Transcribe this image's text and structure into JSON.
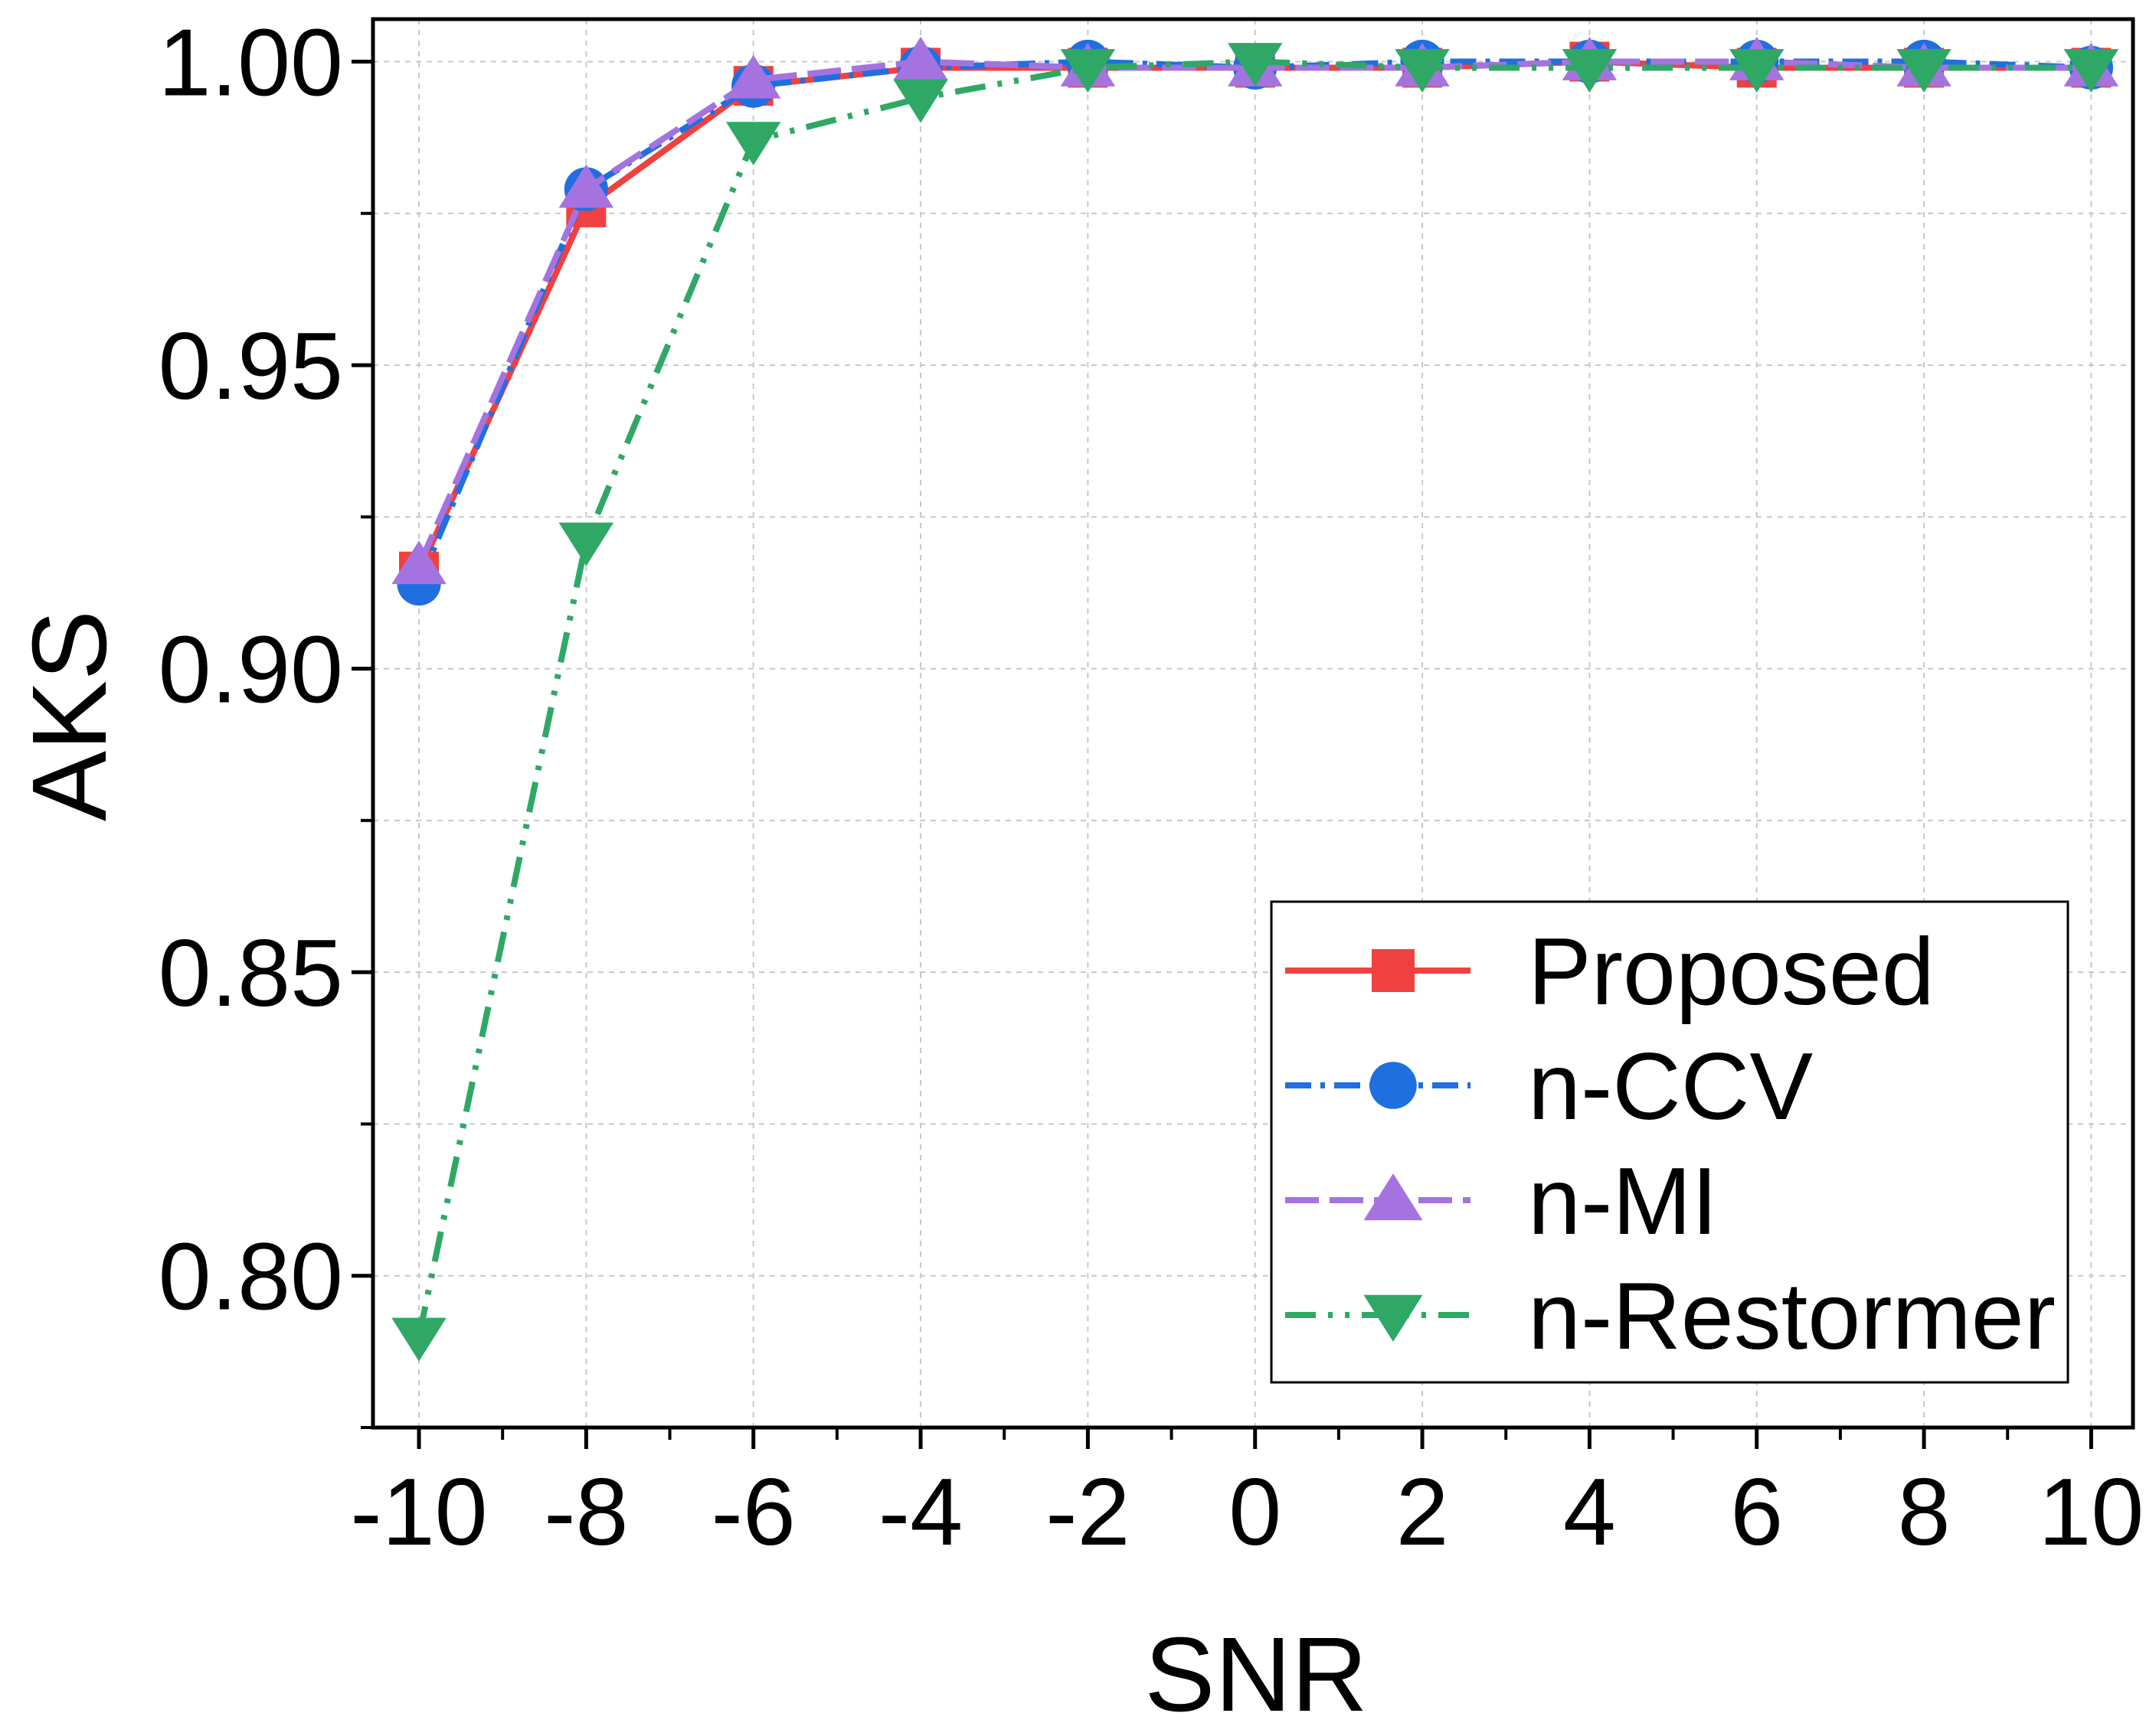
{
  "chart_data": {
    "type": "line",
    "title": "",
    "xlabel": "SNR",
    "ylabel": "AKS",
    "x": [
      -10,
      -8,
      -6,
      -4,
      -2,
      0,
      2,
      4,
      6,
      8,
      10
    ],
    "xticks": [
      "-10",
      "-8",
      "-6",
      "-4",
      "-2",
      "0",
      "2",
      "4",
      "6",
      "8",
      "10"
    ],
    "yticks": [
      "0.80",
      "0.85",
      "0.90",
      "0.95",
      "1.00"
    ],
    "ytick_values": [
      0.8,
      0.85,
      0.9,
      0.95,
      1.0
    ],
    "xlim": [
      -10.55,
      10.5
    ],
    "ylim": [
      0.775,
      1.007
    ],
    "grid": true,
    "legend_position": "bottom-right",
    "series": [
      {
        "name": "Proposed",
        "color": "#f04040",
        "marker": "square",
        "line_style": "solid",
        "values": [
          0.916,
          0.976,
          0.996,
          0.999,
          0.999,
          0.999,
          0.999,
          1.0,
          0.999,
          0.999,
          0.999
        ]
      },
      {
        "name": "n-CCV",
        "color": "#1f6fe0",
        "marker": "circle",
        "line_style": "dash-dot",
        "values": [
          0.914,
          0.979,
          0.996,
          0.999,
          1.0,
          0.999,
          1.0,
          1.0,
          1.0,
          1.0,
          0.999
        ]
      },
      {
        "name": "n-MI",
        "color": "#a473e0",
        "marker": "triangle-up",
        "line_style": "long-dash",
        "values": [
          0.917,
          0.979,
          0.997,
          1.0,
          0.999,
          0.999,
          0.999,
          1.0,
          1.0,
          0.999,
          0.999
        ]
      },
      {
        "name": "n-Restormer",
        "color": "#2fa866",
        "marker": "triangle-down",
        "line_style": "dash-dot-dot",
        "values": [
          0.79,
          0.921,
          0.987,
          0.994,
          0.999,
          1.0,
          0.999,
          0.999,
          0.999,
          0.999,
          0.999
        ]
      }
    ]
  }
}
